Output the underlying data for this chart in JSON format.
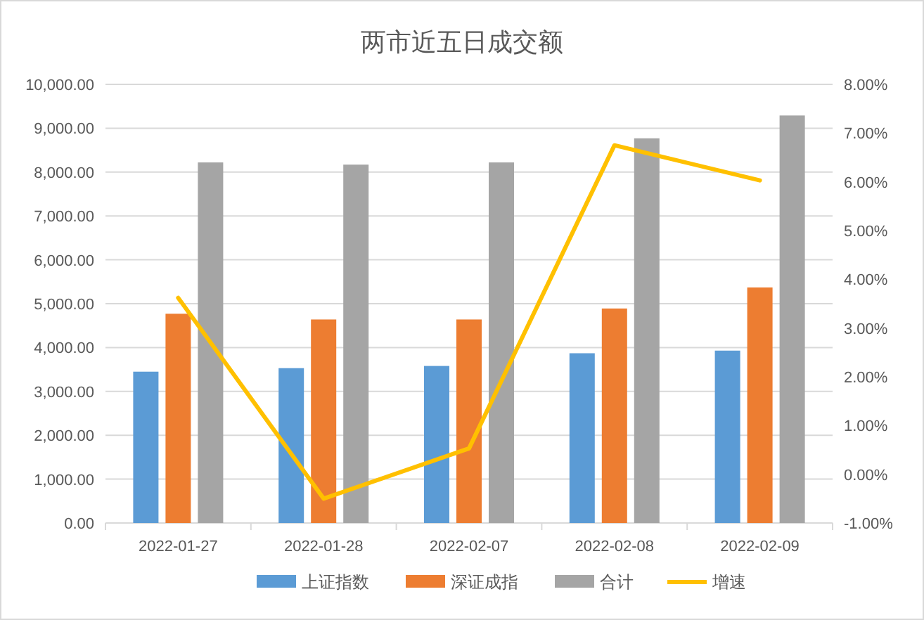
{
  "chart_data": {
    "type": "bar",
    "title": "两市近五日成交额",
    "categories": [
      "2022-01-27",
      "2022-01-28",
      "2022-02-07",
      "2022-02-08",
      "2022-02-09"
    ],
    "series": [
      {
        "name": "上证指数",
        "color": "#5b9bd5",
        "values": [
          3450,
          3530,
          3580,
          3870,
          3930
        ]
      },
      {
        "name": "深证成指",
        "color": "#ed7d31",
        "values": [
          4770,
          4640,
          4640,
          4890,
          5370
        ]
      },
      {
        "name": "合计",
        "color": "#a5a5a5",
        "values": [
          8220,
          8170,
          8220,
          8770,
          9290
        ]
      },
      {
        "name": "增速",
        "type": "line",
        "axis": "y2",
        "color": "#ffc000",
        "values": [
          3.62,
          -0.5,
          0.53,
          6.75,
          6.03
        ]
      }
    ],
    "ylim": [
      0,
      10000
    ],
    "yticks": [
      {
        "value": 0,
        "label": "0.00"
      },
      {
        "value": 1000,
        "label": "1,000.00"
      },
      {
        "value": 2000,
        "label": "2,000.00"
      },
      {
        "value": 3000,
        "label": "3,000.00"
      },
      {
        "value": 4000,
        "label": "4,000.00"
      },
      {
        "value": 5000,
        "label": "5,000.00"
      },
      {
        "value": 6000,
        "label": "6,000.00"
      },
      {
        "value": 7000,
        "label": "7,000.00"
      },
      {
        "value": 8000,
        "label": "8,000.00"
      },
      {
        "value": 9000,
        "label": "9,000.00"
      },
      {
        "value": 10000,
        "label": "10,000.00"
      }
    ],
    "y2lim": [
      -1,
      8
    ],
    "y2ticks": [
      {
        "value": -1,
        "label": "-1.00%"
      },
      {
        "value": 0,
        "label": "0.00%"
      },
      {
        "value": 1,
        "label": "1.00%"
      },
      {
        "value": 2,
        "label": "2.00%"
      },
      {
        "value": 3,
        "label": "3.00%"
      },
      {
        "value": 4,
        "label": "4.00%"
      },
      {
        "value": 5,
        "label": "5.00%"
      },
      {
        "value": 6,
        "label": "6.00%"
      },
      {
        "value": 7,
        "label": "7.00%"
      },
      {
        "value": 8,
        "label": "8.00%"
      }
    ],
    "grid": "y",
    "legend": "bottom",
    "marker": "none",
    "line_style": "solid"
  }
}
